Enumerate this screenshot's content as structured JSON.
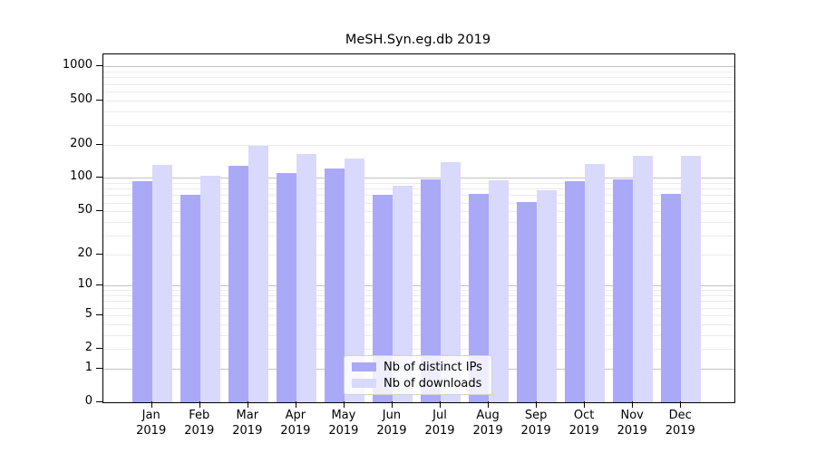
{
  "chart_data": {
    "type": "bar",
    "title": "MeSH.Syn.eg.db 2019",
    "categories": [
      "Jan",
      "Feb",
      "Mar",
      "Apr",
      "May",
      "Jun",
      "Jul",
      "Aug",
      "Sep",
      "Oct",
      "Nov",
      "Dec"
    ],
    "category_sublabel": "2019",
    "series": [
      {
        "name": "Nb of distinct IPs",
        "color": "#a9a9f8",
        "values": [
          93,
          71,
          129,
          111,
          122,
          71,
          98,
          72,
          61,
          94,
          97,
          72
        ]
      },
      {
        "name": "Nb of downloads",
        "color": "#d9d9fc",
        "values": [
          131,
          105,
          195,
          163,
          150,
          85,
          139,
          96,
          78,
          133,
          159,
          157
        ]
      }
    ],
    "xlabel": "",
    "ylabel": "",
    "y_scale": "log1p",
    "y_ticks": [
      0,
      1,
      2,
      5,
      10,
      20,
      50,
      100,
      200,
      500,
      1000
    ],
    "ylim": [
      0,
      1285
    ],
    "grid": {
      "on": true,
      "minor_color": "#ebebeb",
      "major_color": "#c2c2c2",
      "major_values": [
        1,
        10,
        100,
        1000
      ]
    },
    "legend_position": "bottom-center",
    "axis_color": "#000000"
  }
}
